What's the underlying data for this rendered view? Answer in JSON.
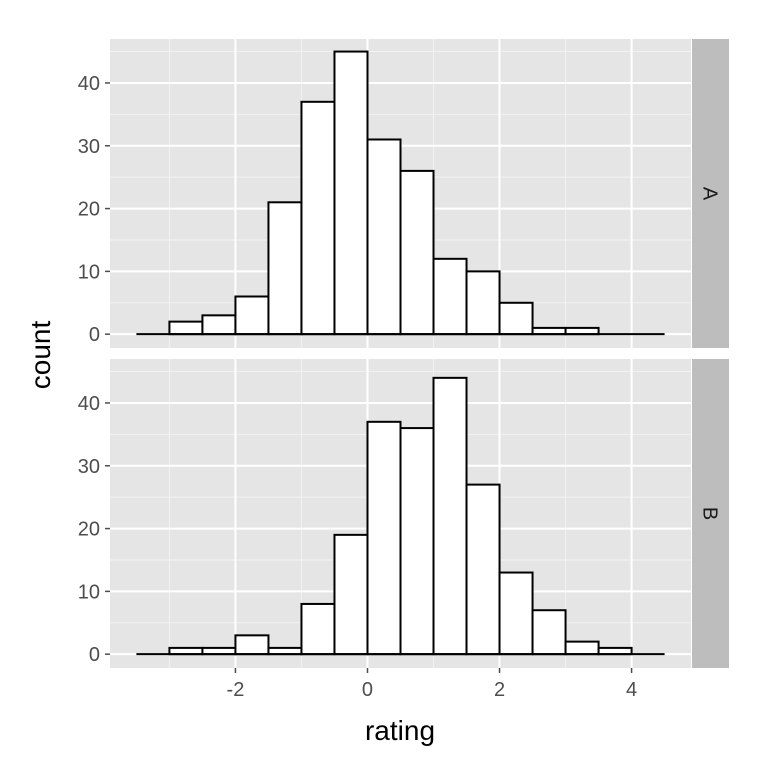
{
  "chart_data": {
    "type": "bar",
    "subtype": "faceted-histogram",
    "xlabel": "rating",
    "ylabel": "count",
    "xlim": [
      -3.9,
      4.9
    ],
    "ylim": [
      -2.2,
      47
    ],
    "x_ticks": [
      -2,
      0,
      2,
      4
    ],
    "x_tick_labels": [
      "-2",
      "0",
      "2",
      "4"
    ],
    "y_ticks": [
      0,
      10,
      20,
      30,
      40
    ],
    "y_tick_labels": [
      "0",
      "10",
      "20",
      "30",
      "40"
    ],
    "grid": true,
    "facet_direction": "rows",
    "bin_width": 0.5,
    "bin_edges_start": -3.5,
    "facets": [
      {
        "label": "A",
        "counts": [
          0,
          2,
          3,
          6,
          21,
          37,
          45,
          31,
          26,
          12,
          10,
          5,
          1,
          1,
          0,
          0
        ]
      },
      {
        "label": "B",
        "counts": [
          0,
          1,
          1,
          3,
          1,
          8,
          19,
          37,
          36,
          44,
          27,
          13,
          7,
          2,
          1,
          0
        ]
      }
    ],
    "colors": {
      "panel_background": "#e5e5e5",
      "bar_fill": "#ffffff",
      "bar_outline": "#000000",
      "strip_background": "#bdbdbd"
    }
  }
}
